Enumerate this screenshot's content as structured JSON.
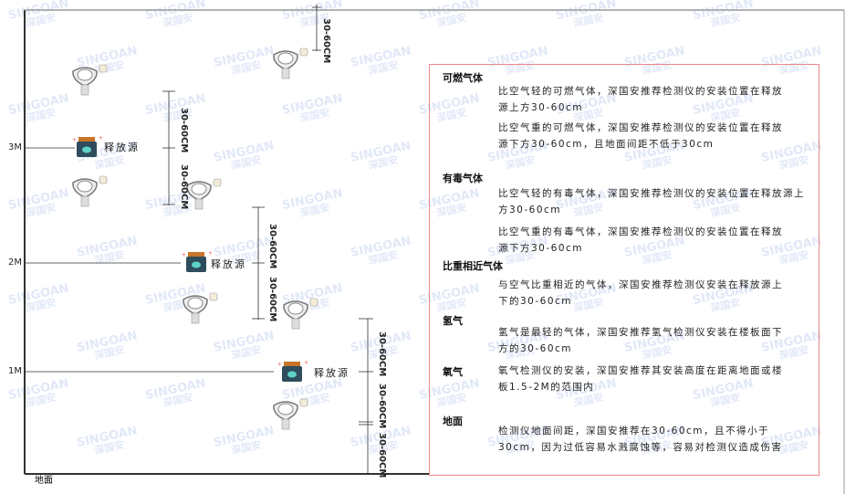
{
  "watermark": {
    "brand": "SINGOAN",
    "brand_cn": "深国安"
  },
  "levels": [
    {
      "label": "3M"
    },
    {
      "label": "2M"
    },
    {
      "label": "1M"
    }
  ],
  "source_label": "释放源",
  "dimension_label": "30-60CM",
  "ground_label": "地面",
  "info": {
    "sections": [
      {
        "title": "可燃气体",
        "paragraphs": [
          "比空气轻的可燃气体，深国安推荐检测仪的安装位置在释放源上方30-60cm",
          "比空气重的可燃气体，深国安推荐检测仪的安装位置在释放源下方30-60cm，且地面间距不低于30cm"
        ]
      },
      {
        "title": "有毒气体",
        "paragraphs": [
          "比空气轻的有毒气体，深国安推荐检测仪的安装位置在释放源上方30-60cm",
          "比空气重的有毒气体，深国安推荐检测仪的安装位置在释放源下方30-60cm"
        ]
      },
      {
        "title": "比重相近气体",
        "paragraphs": [
          "与空气比重相近的气体，深国安推荐检测仪安装在释放源上下的30-60cm"
        ]
      },
      {
        "title": "氢气",
        "paragraphs": [
          "氢气是最轻的气体，深国安推荐氢气检测仪安装在楼板面下方的30-60cm"
        ]
      },
      {
        "title": "氧气",
        "paragraphs": [
          "氧气检测仪的安装，深国安推荐其安装高度在距离地面或楼板1.5-2M的范围内"
        ]
      },
      {
        "title": "地面",
        "paragraphs": [
          "检测仪地面间距，深国安推荐在30-60cm，且不得小于30cm，因为过低容易水溅腐蚀等，容易对检测仪造成伤害"
        ]
      }
    ]
  },
  "colors": {
    "frame": "#333333",
    "box_border": "#ee8888",
    "source_body": "#2f4d5c",
    "source_icon": "#5fd3c8",
    "source_cap": "#c8742a"
  }
}
